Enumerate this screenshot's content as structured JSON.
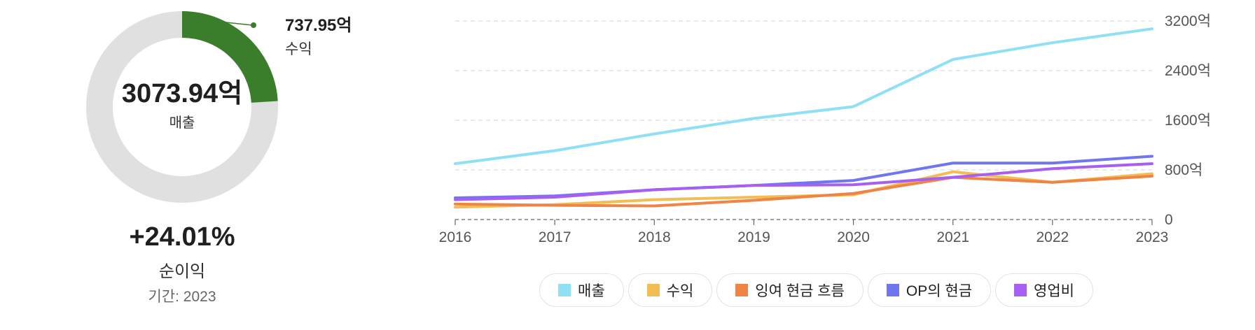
{
  "summary": {
    "total_value": "3073.94억",
    "total_label": "매출",
    "highlight_value": "737.95억",
    "highlight_label": "수익",
    "highlight_fraction": 0.2401,
    "growth": "+24.01%",
    "growth_label": "순이익",
    "period": "기간: 2023",
    "colors": {
      "highlight": "#3a7d2a",
      "track": "#e0e0e0"
    }
  },
  "chart_data": {
    "type": "line",
    "x": [
      "2016",
      "2017",
      "2018",
      "2019",
      "2020",
      "2021",
      "2022",
      "2023"
    ],
    "ylim": [
      0,
      3200
    ],
    "yticks": [
      0,
      800,
      1600,
      2400,
      3200
    ],
    "ytick_labels": [
      "0",
      "800억",
      "1600억",
      "2400억",
      "3200억"
    ],
    "grid": true,
    "yaxis_position": "right",
    "legend_placement": "bottom",
    "series": [
      {
        "name": "매출",
        "color": "#8fdff5",
        "values": [
          900,
          1110,
          1380,
          1630,
          1820,
          2580,
          2850,
          3074
        ]
      },
      {
        "name": "수익",
        "color": "#f2bd53",
        "values": [
          200,
          240,
          320,
          360,
          400,
          770,
          600,
          738
        ]
      },
      {
        "name": "잉여 현금 흐름",
        "color": "#ee8446",
        "values": [
          250,
          230,
          220,
          310,
          420,
          680,
          600,
          700
        ]
      },
      {
        "name": "OP의 현금",
        "color": "#7076ee",
        "values": [
          350,
          380,
          480,
          550,
          630,
          910,
          910,
          1020
        ]
      },
      {
        "name": "영업비",
        "color": "#a65ff0",
        "values": [
          320,
          360,
          480,
          550,
          560,
          680,
          820,
          900
        ]
      }
    ]
  }
}
